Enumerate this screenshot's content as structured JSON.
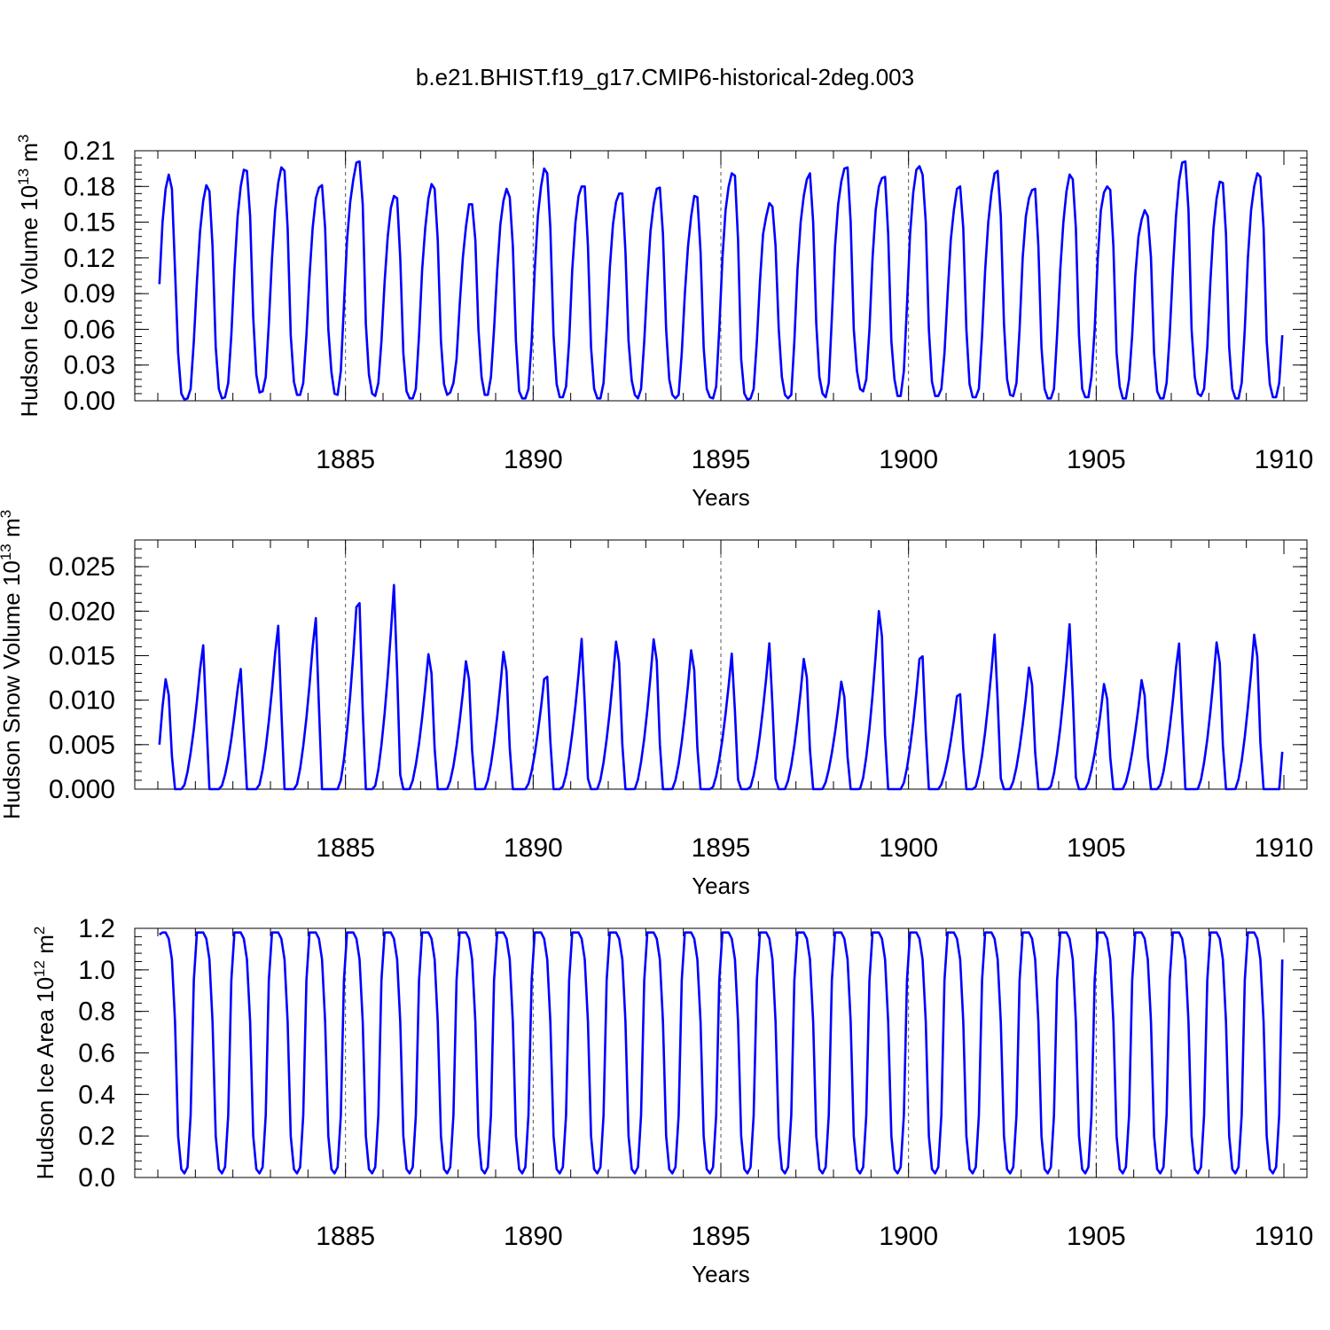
{
  "figure_title": "b.e21.BHIST.f19_g17.CMIP6-historical-2deg.003",
  "colors": {
    "series": "#0000ff",
    "axes": "#000000",
    "grid": "#555555"
  },
  "chart_data": [
    {
      "type": "line",
      "title": "",
      "xlabel": "Years",
      "ylabel": "Hudson Ice Volume 10^13 m^3",
      "ylabel_parts": {
        "text": "Hudson Ice Volume 10",
        "exp": "13",
        "unit": "m",
        "unit_exp": "3"
      },
      "xlim": [
        1880,
        1910
      ],
      "ylim": [
        0.0,
        0.21
      ],
      "xticks": [
        1885,
        1890,
        1895,
        1900,
        1905,
        1910
      ],
      "xtick_labels": [
        "1885",
        "1890",
        "1895",
        "1900",
        "1905",
        "1910"
      ],
      "yticks": [
        0.0,
        0.03,
        0.06,
        0.09,
        0.12,
        0.15,
        0.18,
        0.21
      ],
      "ytick_labels": [
        "0.00",
        "0.03",
        "0.06",
        "0.09",
        "0.12",
        "0.15",
        "0.18",
        "0.21"
      ],
      "grid": "dashed vertical lines at labeled years",
      "series": [
        {
          "x_start": 1880.0417,
          "x_step": 0.083333,
          "values": [
            0.098,
            0.15,
            0.178,
            0.19,
            0.178,
            0.11,
            0.04,
            0.006,
            0.001,
            0.002,
            0.01,
            0.05,
            0.1,
            0.142,
            0.168,
            0.181,
            0.176,
            0.13,
            0.045,
            0.01,
            0.002,
            0.003,
            0.015,
            0.055,
            0.11,
            0.155,
            0.18,
            0.194,
            0.193,
            0.155,
            0.07,
            0.022,
            0.007,
            0.008,
            0.02,
            0.065,
            0.12,
            0.16,
            0.183,
            0.196,
            0.193,
            0.145,
            0.055,
            0.016,
            0.005,
            0.005,
            0.015,
            0.055,
            0.105,
            0.145,
            0.17,
            0.179,
            0.181,
            0.145,
            0.06,
            0.024,
            0.006,
            0.005,
            0.025,
            0.08,
            0.135,
            0.167,
            0.186,
            0.2,
            0.201,
            0.165,
            0.065,
            0.022,
            0.006,
            0.004,
            0.015,
            0.05,
            0.1,
            0.138,
            0.162,
            0.172,
            0.17,
            0.12,
            0.04,
            0.008,
            0.002,
            0.002,
            0.01,
            0.055,
            0.11,
            0.145,
            0.17,
            0.182,
            0.178,
            0.135,
            0.05,
            0.014,
            0.005,
            0.007,
            0.015,
            0.035,
            0.08,
            0.12,
            0.146,
            0.165,
            0.165,
            0.135,
            0.06,
            0.02,
            0.005,
            0.005,
            0.02,
            0.06,
            0.11,
            0.148,
            0.168,
            0.178,
            0.171,
            0.13,
            0.05,
            0.008,
            0.002,
            0.002,
            0.01,
            0.05,
            0.11,
            0.155,
            0.18,
            0.195,
            0.191,
            0.145,
            0.055,
            0.014,
            0.003,
            0.003,
            0.012,
            0.05,
            0.11,
            0.15,
            0.172,
            0.18,
            0.18,
            0.13,
            0.045,
            0.01,
            0.002,
            0.002,
            0.015,
            0.06,
            0.112,
            0.148,
            0.167,
            0.174,
            0.174,
            0.125,
            0.05,
            0.017,
            0.005,
            0.002,
            0.01,
            0.05,
            0.1,
            0.142,
            0.165,
            0.178,
            0.179,
            0.14,
            0.06,
            0.018,
            0.005,
            0.002,
            0.005,
            0.04,
            0.09,
            0.13,
            0.155,
            0.172,
            0.171,
            0.125,
            0.045,
            0.01,
            0.003,
            0.002,
            0.012,
            0.06,
            0.12,
            0.16,
            0.18,
            0.191,
            0.189,
            0.135,
            0.035,
            0.006,
            0.001,
            0.002,
            0.01,
            0.05,
            0.1,
            0.14,
            0.155,
            0.166,
            0.163,
            0.13,
            0.06,
            0.02,
            0.005,
            0.002,
            0.005,
            0.05,
            0.11,
            0.15,
            0.172,
            0.186,
            0.191,
            0.15,
            0.065,
            0.02,
            0.006,
            0.003,
            0.015,
            0.07,
            0.13,
            0.165,
            0.184,
            0.195,
            0.196,
            0.15,
            0.06,
            0.025,
            0.01,
            0.008,
            0.018,
            0.06,
            0.12,
            0.16,
            0.18,
            0.187,
            0.188,
            0.14,
            0.05,
            0.018,
            0.004,
            0.004,
            0.025,
            0.08,
            0.14,
            0.175,
            0.194,
            0.197,
            0.19,
            0.15,
            0.06,
            0.016,
            0.004,
            0.004,
            0.01,
            0.04,
            0.09,
            0.135,
            0.16,
            0.178,
            0.18,
            0.145,
            0.06,
            0.014,
            0.003,
            0.003,
            0.01,
            0.055,
            0.11,
            0.15,
            0.175,
            0.191,
            0.193,
            0.155,
            0.065,
            0.018,
            0.005,
            0.004,
            0.015,
            0.06,
            0.12,
            0.155,
            0.17,
            0.177,
            0.178,
            0.13,
            0.045,
            0.01,
            0.002,
            0.002,
            0.01,
            0.055,
            0.11,
            0.15,
            0.176,
            0.19,
            0.186,
            0.145,
            0.055,
            0.01,
            0.003,
            0.003,
            0.02,
            0.06,
            0.12,
            0.16,
            0.175,
            0.18,
            0.177,
            0.13,
            0.04,
            0.012,
            0.002,
            0.002,
            0.018,
            0.055,
            0.105,
            0.138,
            0.152,
            0.16,
            0.155,
            0.12,
            0.04,
            0.008,
            0.002,
            0.002,
            0.015,
            0.055,
            0.11,
            0.155,
            0.185,
            0.2,
            0.201,
            0.16,
            0.06,
            0.02,
            0.006,
            0.004,
            0.01,
            0.045,
            0.1,
            0.145,
            0.17,
            0.184,
            0.183,
            0.14,
            0.045,
            0.01,
            0.002,
            0.002,
            0.015,
            0.06,
            0.12,
            0.16,
            0.18,
            0.191,
            0.188,
            0.145,
            0.05,
            0.014,
            0.003,
            0.003,
            0.015,
            0.055
          ]
        }
      ]
    },
    {
      "type": "line",
      "title": "",
      "xlabel": "Years",
      "ylabel": "Hudson Snow Volume 10^13 m^3",
      "ylabel_parts": {
        "text": "Hudson Snow Volume 10",
        "exp": "13",
        "unit": "m",
        "unit_exp": "3"
      },
      "xlim": [
        1880,
        1910
      ],
      "ylim": [
        0.0,
        0.028
      ],
      "xticks": [
        1885,
        1890,
        1895,
        1900,
        1905,
        1910
      ],
      "xtick_labels": [
        "1885",
        "1890",
        "1895",
        "1900",
        "1905",
        "1910"
      ],
      "yticks": [
        0.0,
        0.005,
        0.01,
        0.015,
        0.02,
        0.025
      ],
      "ytick_labels": [
        "0.000",
        "0.005",
        "0.010",
        "0.015",
        "0.020",
        "0.025"
      ],
      "grid": "dashed vertical lines at labeled years",
      "series": [
        {
          "x_start": 1880.0417,
          "x_step": 0.083333,
          "peaks": [
            {
              "x": 1880.25,
              "v": 0.014
            },
            {
              "x": 1881.2,
              "v": 0.017
            },
            {
              "x": 1882.2,
              "v": 0.0142
            },
            {
              "x": 1883.2,
              "v": 0.0193
            },
            {
              "x": 1884.2,
              "v": 0.0202
            },
            {
              "x": 1885.35,
              "v": 0.0245
            },
            {
              "x": 1886.3,
              "v": 0.0235
            },
            {
              "x": 1887.25,
              "v": 0.0172
            },
            {
              "x": 1888.25,
              "v": 0.0163
            },
            {
              "x": 1889.25,
              "v": 0.0175
            },
            {
              "x": 1890.35,
              "v": 0.0148
            },
            {
              "x": 1891.3,
              "v": 0.0173
            },
            {
              "x": 1892.25,
              "v": 0.0188
            },
            {
              "x": 1893.25,
              "v": 0.0191
            },
            {
              "x": 1894.25,
              "v": 0.0177
            },
            {
              "x": 1895.3,
              "v": 0.0156
            },
            {
              "x": 1896.3,
              "v": 0.0168
            },
            {
              "x": 1897.25,
              "v": 0.0166
            },
            {
              "x": 1898.25,
              "v": 0.0137
            },
            {
              "x": 1899.25,
              "v": 0.0227
            },
            {
              "x": 1900.35,
              "v": 0.0175
            },
            {
              "x": 1901.35,
              "v": 0.0125
            },
            {
              "x": 1902.3,
              "v": 0.0178
            },
            {
              "x": 1903.25,
              "v": 0.0155
            },
            {
              "x": 1904.3,
              "v": 0.019
            },
            {
              "x": 1905.25,
              "v": 0.0134
            },
            {
              "x": 1906.25,
              "v": 0.0139
            },
            {
              "x": 1907.2,
              "v": 0.0172
            },
            {
              "x": 1908.25,
              "v": 0.0187
            },
            {
              "x": 1909.25,
              "v": 0.0197
            }
          ],
          "start_value": 0.005,
          "end_value": 0.0042
        }
      ]
    },
    {
      "type": "line",
      "title": "",
      "xlabel": "Years",
      "ylabel": "Hudson Ice Area 10^12 m^2",
      "ylabel_parts": {
        "text": "Hudson Ice Area 10",
        "exp": "12",
        "unit": "m",
        "unit_exp": "2"
      },
      "xlim": [
        1880,
        1910
      ],
      "ylim": [
        0.0,
        1.2
      ],
      "xticks": [
        1885,
        1890,
        1895,
        1900,
        1905,
        1910
      ],
      "xtick_labels": [
        "1885",
        "1890",
        "1895",
        "1900",
        "1905",
        "1910"
      ],
      "yticks": [
        0.0,
        0.2,
        0.4,
        0.6,
        0.8,
        1.0,
        1.2
      ],
      "ytick_labels": [
        "0.0",
        "0.2",
        "0.4",
        "0.6",
        "0.8",
        "1.0",
        "1.2"
      ],
      "grid": "dashed vertical lines at labeled years",
      "reference_line": 1.2,
      "series": [
        {
          "x_start": 1880.0417,
          "x_step": 0.083333,
          "annual_cycle": [
            1.18,
            1.18,
            1.18,
            1.15,
            1.05,
            0.75,
            0.2,
            0.04,
            0.02,
            0.05,
            0.3,
            0.95
          ],
          "start_value": 1.17,
          "end_value": 1.05
        }
      ]
    }
  ]
}
